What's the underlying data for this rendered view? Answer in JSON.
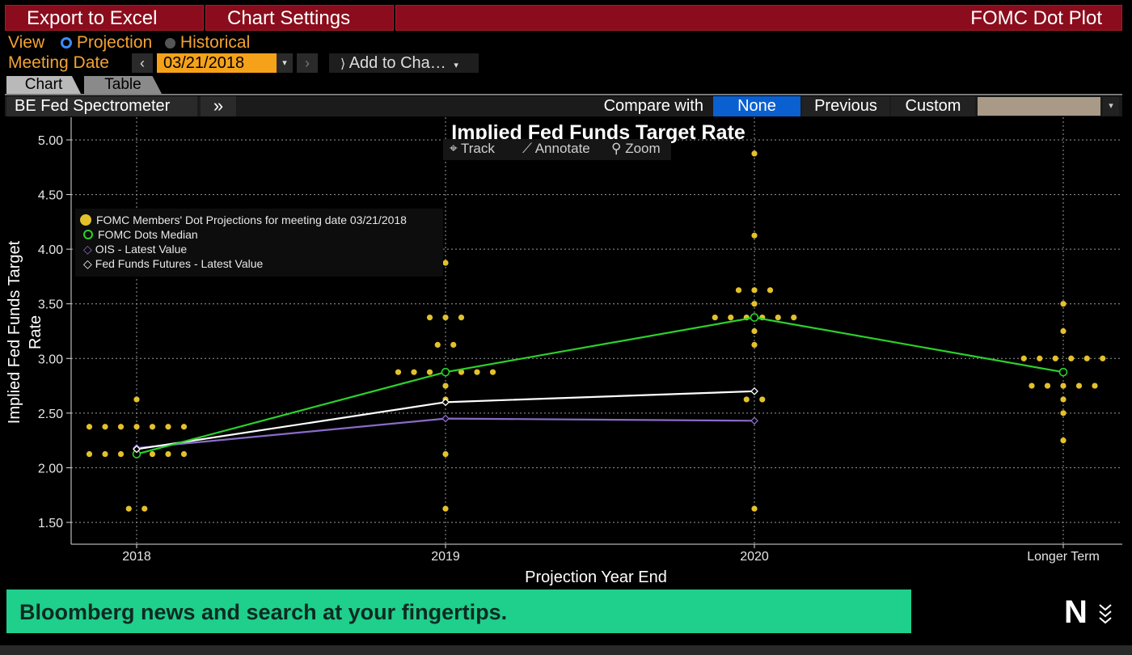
{
  "toolbar": {
    "export_label": "Export to Excel",
    "settings_label": "Chart Settings",
    "app_title": "FOMC Dot Plot"
  },
  "view": {
    "label": "View",
    "options": [
      "Projection",
      "Historical"
    ],
    "selected": "Projection"
  },
  "meeting": {
    "label": "Meeting Date",
    "date": "03/21/2018",
    "add_to_chart": "Add to Cha…"
  },
  "tabs": [
    "Chart",
    "Table"
  ],
  "subbar": {
    "source": "BE Fed Spectrometer",
    "more": "»",
    "compare_label": "Compare with",
    "compare_options": [
      "None",
      "Previous",
      "Custom"
    ],
    "compare_selected": "None"
  },
  "chart_tools": [
    "Track",
    "Annotate",
    "Zoom"
  ],
  "colors": {
    "brand_red": "#8b0c1c",
    "accent_orange": "#f3a233",
    "dot_yellow": "#e3c12b",
    "median_green": "#2bd12b",
    "ois_purple": "#8a6bc9",
    "futures_white": "#ffffff",
    "banner_green": "#1fcf8c"
  },
  "chart_data": {
    "type": "scatter",
    "title": "Implied Fed Funds Target Rate",
    "xlabel": "Projection Year End",
    "ylabel": "Implied Fed Funds Target Rate",
    "categories": [
      "2018",
      "2019",
      "2020",
      "Longer Term"
    ],
    "ylim": [
      1.25,
      5.25
    ],
    "yticks": [
      "5.00",
      "4.50",
      "4.00",
      "3.50",
      "3.00",
      "2.50",
      "2.00",
      "1.50"
    ],
    "grid": true,
    "legend_position": "top-left",
    "dots": [
      {
        "x": "2018",
        "values": [
          2.625,
          2.375,
          2.375,
          2.375,
          2.375,
          2.375,
          2.375,
          2.375,
          2.125,
          2.125,
          2.125,
          2.125,
          2.125,
          2.125,
          2.125,
          1.625,
          1.625
        ]
      },
      {
        "x": "2019",
        "values": [
          3.875,
          3.375,
          3.375,
          3.375,
          3.125,
          3.125,
          2.875,
          2.875,
          2.875,
          2.875,
          2.875,
          2.875,
          2.875,
          2.75,
          2.625,
          2.125,
          1.625
        ]
      },
      {
        "x": "2020",
        "values": [
          4.875,
          4.125,
          3.625,
          3.625,
          3.625,
          3.5,
          3.375,
          3.375,
          3.375,
          3.375,
          3.375,
          3.375,
          3.25,
          3.125,
          2.625,
          2.625,
          1.625
        ]
      },
      {
        "x": "Longer Term",
        "values": [
          3.5,
          3.25,
          3.0,
          3.0,
          3.0,
          3.0,
          3.0,
          3.0,
          2.75,
          2.75,
          2.75,
          2.75,
          2.75,
          2.625,
          2.5,
          2.25
        ]
      }
    ],
    "series": [
      {
        "name": "FOMC Members' Dot Projections for meeting date 03/21/2018",
        "kind": "dots"
      },
      {
        "name": "FOMC Dots Median",
        "values": [
          2.125,
          2.875,
          3.375,
          2.875
        ]
      },
      {
        "name": "OIS - Latest Value",
        "values": [
          2.18,
          2.45,
          2.43
        ]
      },
      {
        "name": "Fed Funds Futures - Latest Value",
        "values": [
          2.17,
          2.6,
          2.7
        ]
      }
    ]
  },
  "banner": {
    "text": "Bloomberg news and search at your fingertips.",
    "logo": "N"
  }
}
